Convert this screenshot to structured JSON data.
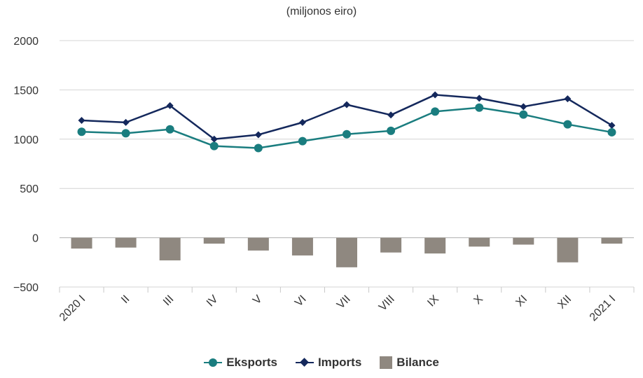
{
  "chart_data": {
    "type": "bar",
    "subtitle": "(miljonos eiro)",
    "categories": [
      "2020 I",
      "II",
      "III",
      "IV",
      "V",
      "VI",
      "VII",
      "VIII",
      "IX",
      "X",
      "XI",
      "XII",
      "2021 I"
    ],
    "ylim": [
      -500,
      2000
    ],
    "yticks": [
      2000,
      1500,
      1000,
      500,
      0,
      -500
    ],
    "grid": true,
    "legend_position": "bottom",
    "series": [
      {
        "name": "Eksports",
        "type": "line",
        "color": "#1a7d7f",
        "marker": "circle",
        "values": [
          1075,
          1060,
          1100,
          930,
          910,
          980,
          1050,
          1085,
          1280,
          1320,
          1250,
          1150,
          1070
        ]
      },
      {
        "name": "Imports",
        "type": "line",
        "color": "#14285c",
        "marker": "diamond",
        "values": [
          1190,
          1170,
          1340,
          1000,
          1045,
          1170,
          1350,
          1245,
          1450,
          1415,
          1330,
          1410,
          1140
        ]
      },
      {
        "name": "Bilance",
        "type": "bar",
        "color": "#8f8880",
        "values": [
          -110,
          -100,
          -230,
          -60,
          -130,
          -180,
          -300,
          -150,
          -160,
          -90,
          -70,
          -250,
          -60
        ]
      }
    ]
  }
}
